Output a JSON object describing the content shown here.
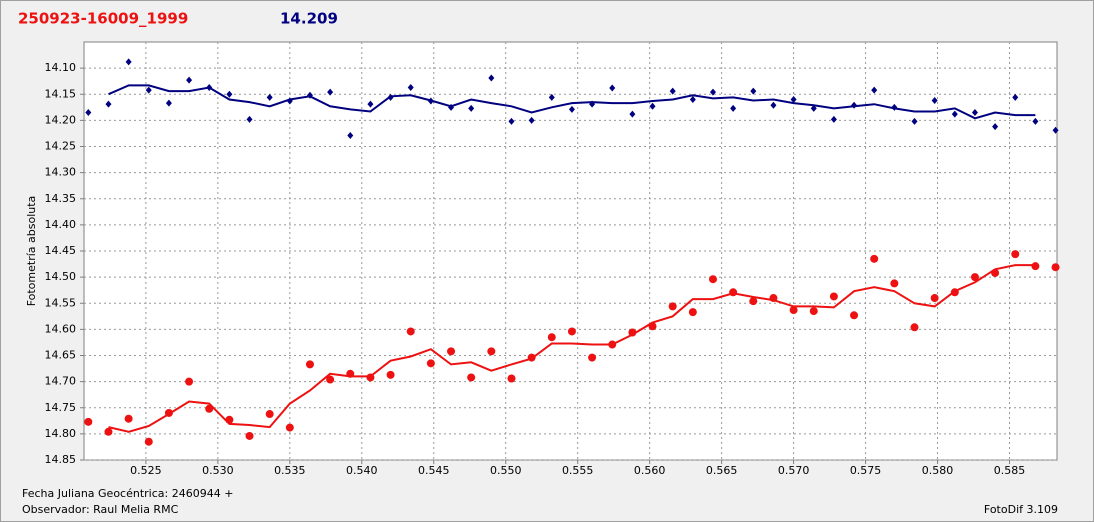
{
  "chart_data": {
    "type": "scatter",
    "title": "250923-16009_1999",
    "subtitle": "14.209",
    "y_label": "Fotometría absoluta",
    "x_label": "Fecha Juliana Geocéntrica: 2460944 +",
    "observer": "Observador: Raul Melia RMC",
    "software": "FotoDif 3.109",
    "y_inverted": true,
    "grid": true,
    "xlim": [
      0.5207,
      0.5883
    ],
    "ylim": [
      14.05,
      14.85
    ],
    "xticks": [
      0.525,
      {
        "value": 0.53,
        "label": "0.530"
      },
      0.535,
      {
        "value": 0.54,
        "label": "0.540"
      },
      0.545,
      {
        "value": 0.55,
        "label": "0.550"
      },
      0.555,
      {
        "value": 0.56,
        "label": "0.560"
      },
      0.565,
      {
        "value": 0.57,
        "label": "0.570"
      },
      0.575,
      {
        "value": 0.58,
        "label": "0.580"
      },
      0.585
    ],
    "yticks": [
      {
        "value": 14.1,
        "label": "14.10"
      },
      14.15,
      {
        "value": 14.2,
        "label": "14.20"
      },
      14.25,
      {
        "value": 14.3,
        "label": "14.30"
      },
      14.35,
      {
        "value": 14.4,
        "label": "14.40"
      },
      14.45,
      {
        "value": 14.5,
        "label": "14.50"
      },
      14.55,
      {
        "value": 14.6,
        "label": "14.60"
      },
      14.65,
      {
        "value": 14.7,
        "label": "14.70"
      },
      14.75,
      {
        "value": 14.8,
        "label": "14.80"
      },
      14.85
    ],
    "x": [
      0.521,
      0.5224,
      0.5238,
      0.5252,
      0.5266,
      0.528,
      0.5294,
      0.5308,
      0.5322,
      0.5336,
      0.535,
      0.5364,
      0.5378,
      0.5392,
      0.5406,
      0.542,
      0.5434,
      0.5448,
      0.5462,
      0.5476,
      0.549,
      0.5504,
      0.5518,
      0.5532,
      0.5546,
      0.556,
      0.5574,
      0.5588,
      0.5602,
      0.5616,
      0.563,
      0.5644,
      0.5658,
      0.5672,
      0.5686,
      0.57,
      0.5714,
      0.5728,
      0.5742,
      0.5756,
      0.577,
      0.5784,
      0.5798,
      0.5812,
      0.5826,
      0.584,
      0.5854,
      0.5868,
      0.5882
    ],
    "series": [
      {
        "color": "#000080",
        "marker": "diamond",
        "values": [
          14.185,
          14.169,
          14.088,
          14.142,
          14.167,
          14.123,
          14.137,
          14.15,
          14.198,
          14.156,
          14.163,
          14.152,
          14.146,
          14.229,
          14.169,
          14.156,
          14.137,
          14.163,
          14.175,
          14.177,
          14.119,
          14.202,
          14.2,
          14.156,
          14.179,
          14.169,
          14.138,
          14.188,
          14.173,
          14.144,
          14.16,
          14.146,
          14.177,
          14.144,
          14.171,
          14.16,
          14.177,
          14.198,
          14.171,
          14.142,
          14.175,
          14.202,
          14.162,
          14.188,
          14.185,
          14.212,
          14.156,
          14.202,
          14.219
        ]
      },
      {
        "color": "#000080",
        "marker": "line",
        "values": [
          null,
          14.15,
          14.133,
          14.133,
          14.144,
          14.144,
          14.137,
          14.16,
          14.165,
          14.173,
          14.16,
          14.154,
          14.173,
          14.179,
          14.183,
          14.154,
          14.152,
          14.162,
          14.173,
          14.16,
          14.167,
          14.173,
          14.185,
          14.175,
          14.167,
          14.165,
          14.167,
          14.167,
          14.163,
          14.16,
          14.152,
          14.158,
          14.156,
          14.162,
          14.16,
          14.167,
          14.171,
          14.177,
          14.173,
          14.169,
          14.177,
          14.183,
          14.183,
          14.177,
          14.196,
          14.185,
          14.19,
          14.19,
          null
        ]
      },
      {
        "color": "#ee1111",
        "marker": "circle",
        "values": [
          14.777,
          14.796,
          14.771,
          14.815,
          14.76,
          14.7,
          14.752,
          14.773,
          14.804,
          14.762,
          14.788,
          14.667,
          14.696,
          14.685,
          14.692,
          14.687,
          14.604,
          14.665,
          14.642,
          14.692,
          14.642,
          14.694,
          14.654,
          14.615,
          14.604,
          14.654,
          14.629,
          14.606,
          14.594,
          14.556,
          14.567,
          14.504,
          14.529,
          14.546,
          14.54,
          14.563,
          14.565,
          14.537,
          14.573,
          14.465,
          14.512,
          14.596,
          14.54,
          14.529,
          14.5,
          14.492,
          14.456,
          14.479,
          14.481
        ]
      },
      {
        "color": "#ee1111",
        "marker": "line",
        "values": [
          null,
          14.787,
          14.796,
          14.785,
          14.762,
          14.738,
          14.742,
          14.781,
          14.783,
          14.787,
          14.742,
          14.717,
          14.685,
          14.69,
          14.69,
          14.66,
          14.652,
          14.638,
          14.667,
          14.663,
          14.679,
          14.667,
          14.656,
          14.627,
          14.627,
          14.629,
          14.629,
          14.61,
          14.587,
          14.575,
          14.542,
          14.542,
          14.531,
          14.538,
          14.544,
          14.556,
          14.556,
          14.558,
          14.527,
          14.519,
          14.527,
          14.55,
          14.556,
          14.527,
          14.51,
          14.485,
          14.477,
          14.477,
          null
        ]
      }
    ]
  }
}
